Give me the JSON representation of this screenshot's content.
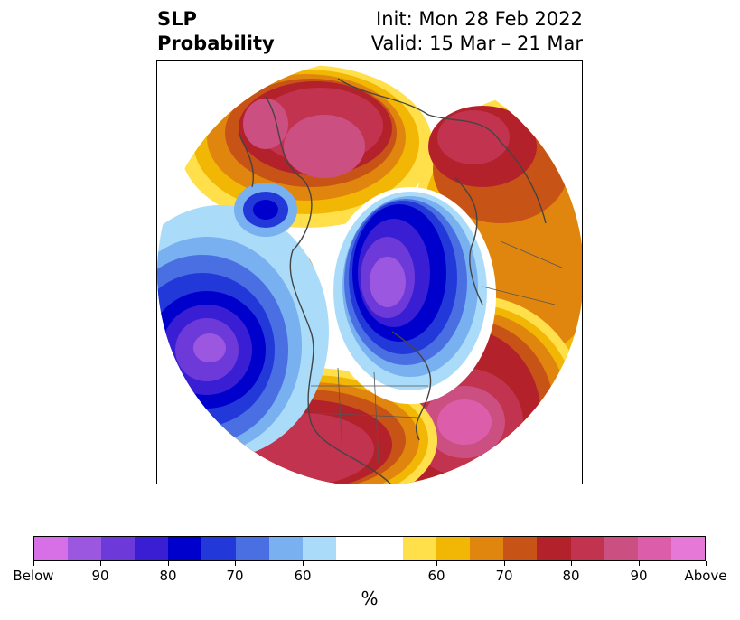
{
  "title": {
    "left_line1": "SLP",
    "left_line2": "Probability",
    "right_line1": "Init: Mon 28 Feb 2022",
    "right_line2": "Valid: 15 Mar – 21 Mar"
  },
  "colorbar": {
    "colors": [
      "#d770e6",
      "#9b57e0",
      "#6e39d9",
      "#3a1ed4",
      "#0000cc",
      "#2238d9",
      "#4a6fe3",
      "#78b0f0",
      "#aadcfa",
      "#ffffff",
      "#ffffff",
      "#ffe04a",
      "#f2b705",
      "#e0860f",
      "#c85316",
      "#b3212a",
      "#c23350",
      "#cc4f82",
      "#dc5eab",
      "#e678d8"
    ],
    "labels": [
      "Below",
      "90",
      "80",
      "70",
      "60",
      "",
      "60",
      "70",
      "80",
      "90",
      "Above"
    ],
    "units": "%"
  },
  "map_legend": {
    "below_colors": [
      "#d770e6",
      "#9b57e0",
      "#6e39d9",
      "#3a1ed4",
      "#0000cc",
      "#2238d9",
      "#4a6fe3",
      "#78b0f0",
      "#aadcfa"
    ],
    "above_colors": [
      "#ffe04a",
      "#f2b705",
      "#e0860f",
      "#c85316",
      "#b3212a",
      "#c23350",
      "#cc4f82",
      "#dc5eab"
    ]
  }
}
